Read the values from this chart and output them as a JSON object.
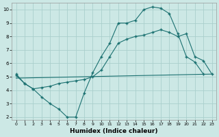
{
  "xlabel": "Humidex (Indice chaleur)",
  "bg_color": "#cce8e5",
  "grid_color": "#aacfcc",
  "line_color": "#1a7070",
  "xlim": [
    -0.5,
    23.5
  ],
  "ylim": [
    1.8,
    10.5
  ],
  "xticks": [
    0,
    1,
    2,
    3,
    4,
    5,
    6,
    7,
    8,
    9,
    10,
    11,
    12,
    13,
    14,
    15,
    16,
    17,
    18,
    19,
    20,
    21,
    22,
    23
  ],
  "yticks": [
    2,
    3,
    4,
    5,
    6,
    7,
    8,
    9,
    10
  ],
  "curve1_x": [
    0,
    1,
    2,
    3,
    4,
    5,
    6,
    7,
    8,
    9,
    10,
    11,
    12,
    13,
    14,
    15,
    16,
    17,
    18,
    19,
    20,
    21,
    22
  ],
  "curve1_y": [
    5.2,
    4.5,
    4.1,
    3.5,
    3.0,
    2.6,
    2.0,
    2.0,
    3.8,
    5.3,
    6.5,
    7.5,
    9.0,
    9.0,
    9.2,
    10.0,
    10.2,
    10.1,
    9.7,
    8.2,
    6.5,
    6.1,
    5.2
  ],
  "curve2_x": [
    0,
    1,
    2,
    3,
    4,
    5,
    6,
    7,
    8,
    9,
    10,
    11,
    12,
    13,
    14,
    15,
    16,
    17,
    18,
    19,
    20,
    21,
    22,
    23
  ],
  "curve2_y": [
    5.1,
    4.5,
    4.1,
    4.2,
    4.3,
    4.5,
    4.6,
    4.7,
    4.8,
    5.0,
    5.5,
    6.5,
    7.5,
    7.8,
    8.0,
    8.1,
    8.3,
    8.5,
    8.3,
    8.0,
    8.2,
    6.5,
    6.2,
    5.2
  ],
  "line3_x": [
    0,
    23
  ],
  "line3_y": [
    4.9,
    5.2
  ]
}
